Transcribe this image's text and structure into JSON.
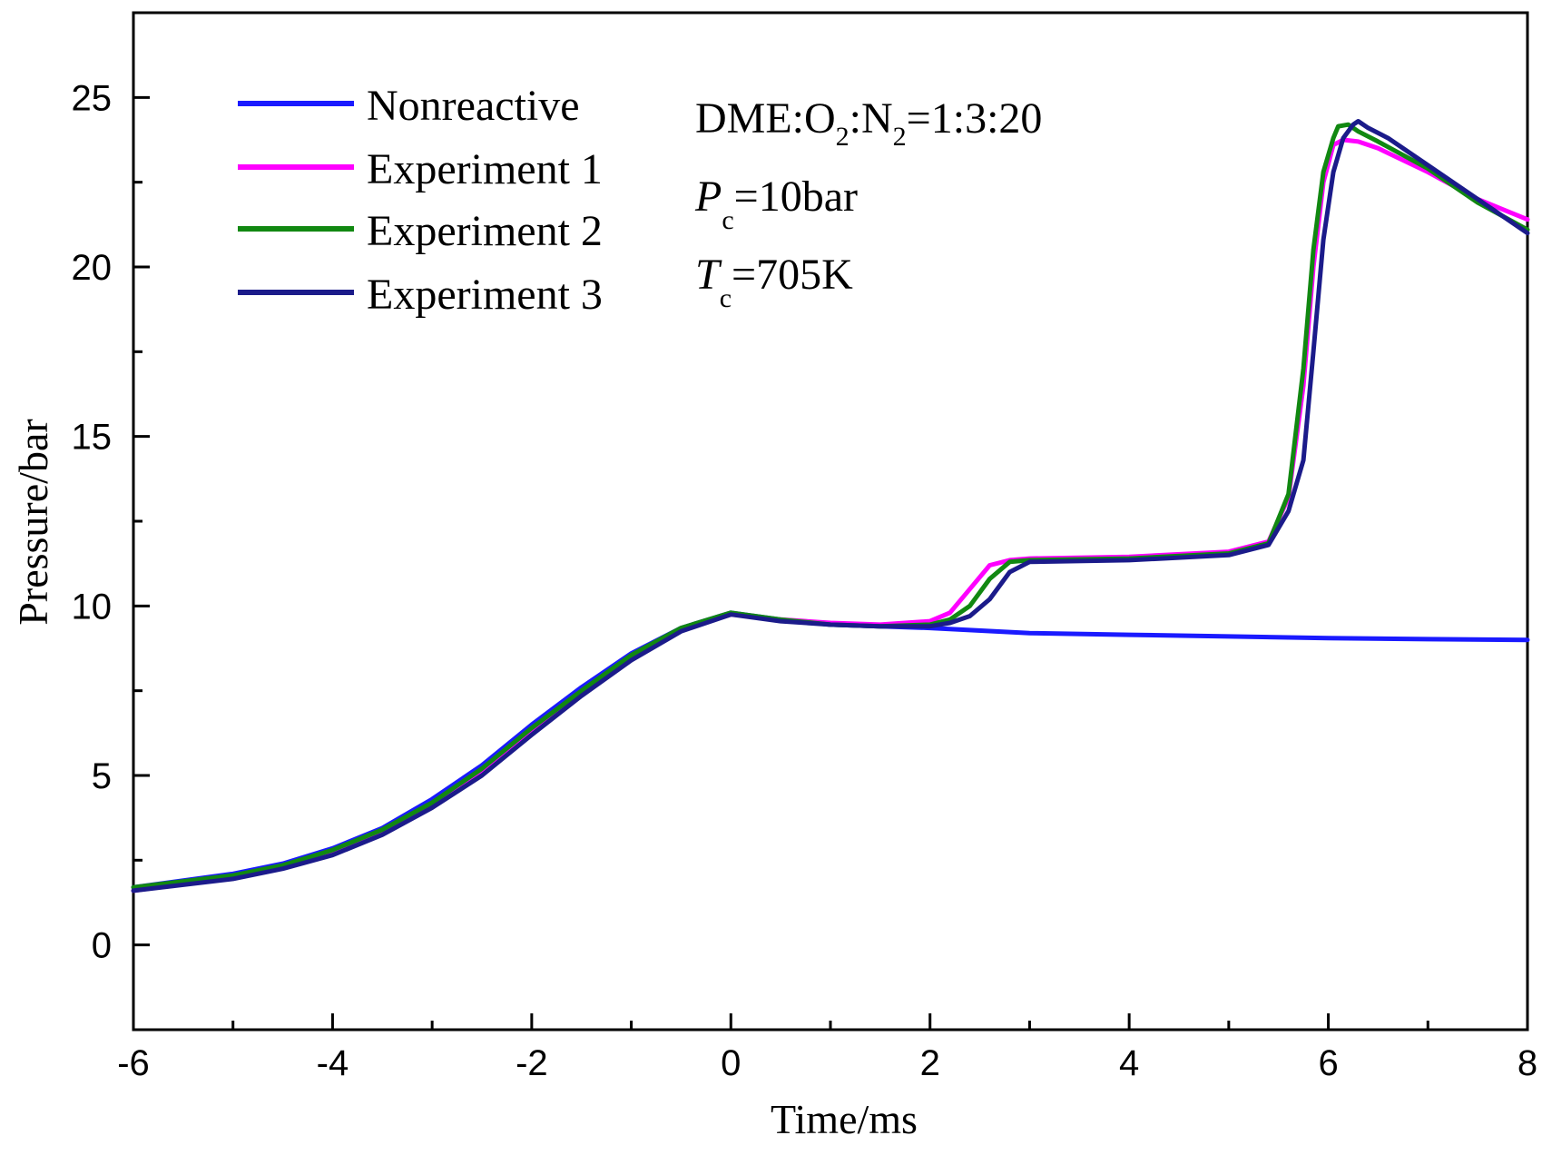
{
  "chart_data": {
    "type": "line",
    "title": "",
    "xlabel": "Time/ms",
    "ylabel": "Pressure/bar",
    "xlim": [
      -6,
      8
    ],
    "ylim": [
      -2.5,
      27.5
    ],
    "xticks": [
      -6,
      -4,
      -2,
      0,
      2,
      4,
      6,
      8
    ],
    "yticks": [
      0,
      5,
      10,
      15,
      20,
      25
    ],
    "xtick_labels": [
      "-6",
      "-4",
      "-2",
      "0",
      "2",
      "4",
      "6",
      "8"
    ],
    "ytick_labels": [
      "0",
      "5",
      "10",
      "15",
      "20",
      "25"
    ],
    "legend_position": "top-left",
    "annotations": {
      "mixture": {
        "p1": "DME:O",
        "s1": "2",
        "p2": ":N",
        "s2": "2",
        "p3": "=1:3:20"
      },
      "pressure": {
        "sym": "P",
        "sub": "c",
        "rest": "=10bar"
      },
      "temperature": {
        "sym": "T",
        "sub": "c",
        "rest": "=705K"
      }
    },
    "series": [
      {
        "name": "Nonreactive",
        "color": "#1a1aff",
        "x": [
          -6,
          -5,
          -4.5,
          -4,
          -3.5,
          -3,
          -2.5,
          -2,
          -1.5,
          -1,
          -0.5,
          0,
          0.5,
          1,
          1.5,
          2,
          3,
          4,
          5,
          6,
          7,
          8
        ],
        "y": [
          1.7,
          2.1,
          2.4,
          2.85,
          3.45,
          4.3,
          5.3,
          6.5,
          7.6,
          8.6,
          9.35,
          9.8,
          9.6,
          9.45,
          9.4,
          9.35,
          9.2,
          9.15,
          9.1,
          9.05,
          9.02,
          9.0
        ]
      },
      {
        "name": "Experiment 1",
        "color": "#ff00ff",
        "x": [
          -6,
          -5,
          -4.5,
          -4,
          -3.5,
          -3,
          -2.5,
          -2,
          -1.5,
          -1,
          -0.5,
          0,
          0.5,
          1,
          1.5,
          2,
          2.2,
          2.4,
          2.6,
          2.8,
          3,
          4,
          5,
          5.4,
          5.6,
          5.75,
          5.85,
          5.95,
          6.05,
          6.15,
          6.3,
          6.5,
          7,
          7.5,
          8
        ],
        "y": [
          1.6,
          2.0,
          2.3,
          2.7,
          3.3,
          4.1,
          5.1,
          6.3,
          7.45,
          8.5,
          9.3,
          9.75,
          9.6,
          9.5,
          9.45,
          9.55,
          9.8,
          10.5,
          11.2,
          11.35,
          11.4,
          11.45,
          11.6,
          11.9,
          13.2,
          16.5,
          20.0,
          22.5,
          23.6,
          23.75,
          23.7,
          23.5,
          22.8,
          22.0,
          21.4
        ]
      },
      {
        "name": "Experiment 2",
        "color": "#118811",
        "x": [
          -6,
          -5,
          -4.5,
          -4,
          -3.5,
          -3,
          -2.5,
          -2,
          -1.5,
          -1,
          -0.5,
          0,
          0.5,
          1,
          1.5,
          2,
          2.2,
          2.4,
          2.6,
          2.8,
          3,
          4,
          5,
          5.4,
          5.6,
          5.75,
          5.85,
          5.95,
          6.05,
          6.1,
          6.2,
          6.3,
          6.5,
          7,
          7.5,
          8
        ],
        "y": [
          1.7,
          2.05,
          2.35,
          2.8,
          3.4,
          4.2,
          5.2,
          6.4,
          7.5,
          8.55,
          9.35,
          9.8,
          9.6,
          9.45,
          9.4,
          9.45,
          9.6,
          10.0,
          10.8,
          11.3,
          11.35,
          11.4,
          11.55,
          11.85,
          13.3,
          17.0,
          20.5,
          22.8,
          23.8,
          24.15,
          24.2,
          24.0,
          23.7,
          22.9,
          21.9,
          21.1
        ]
      },
      {
        "name": "Experiment 3",
        "color": "#1b1b8a",
        "x": [
          -6,
          -5,
          -4.5,
          -4,
          -3.5,
          -3,
          -2.5,
          -2,
          -1.5,
          -1,
          -0.5,
          0,
          0.5,
          1,
          1.5,
          2,
          2.2,
          2.4,
          2.6,
          2.8,
          3,
          4,
          5,
          5.4,
          5.6,
          5.75,
          5.85,
          5.95,
          6.05,
          6.15,
          6.25,
          6.3,
          6.4,
          6.6,
          7,
          7.5,
          8
        ],
        "y": [
          1.6,
          1.95,
          2.25,
          2.65,
          3.25,
          4.05,
          5.0,
          6.2,
          7.35,
          8.4,
          9.25,
          9.75,
          9.55,
          9.45,
          9.4,
          9.4,
          9.5,
          9.7,
          10.2,
          11.0,
          11.3,
          11.35,
          11.5,
          11.8,
          12.8,
          14.3,
          17.5,
          20.8,
          22.8,
          23.8,
          24.2,
          24.3,
          24.1,
          23.8,
          23.0,
          22.0,
          21.0
        ]
      }
    ]
  }
}
